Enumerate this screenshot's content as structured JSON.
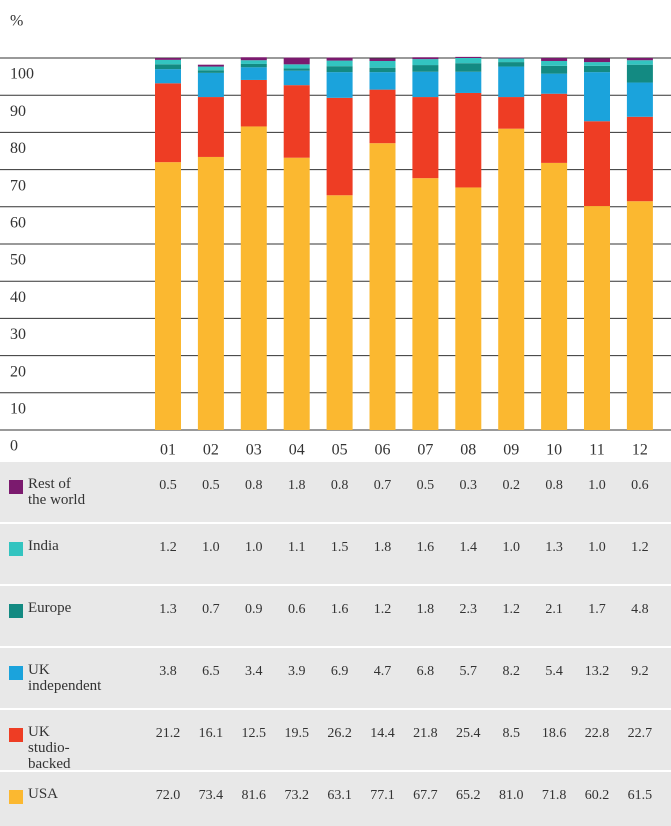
{
  "chart_data": {
    "type": "stacked_bar",
    "y_unit": "%",
    "categories": [
      "01",
      "02",
      "03",
      "04",
      "05",
      "06",
      "07",
      "08",
      "09",
      "10",
      "11",
      "12"
    ],
    "ylim": [
      0,
      100
    ],
    "yticks": [
      0,
      10,
      20,
      30,
      40,
      50,
      60,
      70,
      80,
      90,
      100
    ],
    "grid": true,
    "series": [
      {
        "name": "USA",
        "color": "#fbb830",
        "values": [
          72.0,
          73.4,
          81.6,
          73.2,
          63.1,
          77.1,
          67.7,
          65.2,
          81.0,
          71.8,
          60.2,
          61.5
        ],
        "value_labels": [
          "72.0",
          "73.4",
          "81.6",
          "73.2",
          "63.1",
          "77.1",
          "67.7",
          "65.2",
          "81.0",
          "71.8",
          "60.2",
          "61.5"
        ]
      },
      {
        "name": "UK studio-backed",
        "color": "#ee3d24",
        "values": [
          21.2,
          16.1,
          12.5,
          19.5,
          26.2,
          14.4,
          21.8,
          25.4,
          8.5,
          18.6,
          22.8,
          22.7
        ],
        "value_labels": [
          "21.2",
          "16.1",
          "12.5",
          "19.5",
          "26.2",
          "14.4",
          "21.8",
          "25.4",
          "8.5",
          "18.6",
          "22.8",
          "22.7"
        ]
      },
      {
        "name": "UK independent",
        "color": "#1ba3dc",
        "values": [
          3.8,
          6.5,
          3.4,
          3.9,
          6.9,
          4.7,
          6.8,
          5.7,
          8.2,
          5.4,
          13.2,
          9.2
        ],
        "value_labels": [
          "3.8",
          "6.5",
          "3.4",
          "3.9",
          "6.9",
          "4.7",
          "6.8",
          "5.7",
          "8.2",
          "5.4",
          "13.2",
          "9.2"
        ]
      },
      {
        "name": "Europe",
        "color": "#138a82",
        "values": [
          1.3,
          0.7,
          0.9,
          0.6,
          1.6,
          1.2,
          1.8,
          2.3,
          1.2,
          2.1,
          1.7,
          4.8
        ],
        "value_labels": [
          "1.3",
          "0.7",
          "0.9",
          "0.6",
          "1.6",
          "1.2",
          "1.8",
          "2.3",
          "1.2",
          "2.1",
          "1.7",
          "4.8"
        ]
      },
      {
        "name": "India",
        "color": "#33c4c0",
        "values": [
          1.2,
          1.0,
          1.0,
          1.1,
          1.5,
          1.8,
          1.6,
          1.4,
          1.0,
          1.3,
          1.0,
          1.2
        ],
        "value_labels": [
          "1.2",
          "1.0",
          "1.0",
          "1.1",
          "1.5",
          "1.8",
          "1.6",
          "1.4",
          "1.0",
          "1.3",
          "1.0",
          "1.2"
        ]
      },
      {
        "name": "Rest of the world",
        "color": "#7b1a6e",
        "values": [
          0.5,
          0.5,
          0.8,
          1.8,
          0.8,
          0.7,
          0.5,
          0.3,
          0.2,
          0.8,
          1.0,
          0.6
        ],
        "value_labels": [
          "0.5",
          "0.5",
          "0.8",
          "1.8",
          "0.8",
          "0.7",
          "0.5",
          "0.3",
          "0.2",
          "0.8",
          "1.0",
          "0.6"
        ]
      }
    ]
  }
}
